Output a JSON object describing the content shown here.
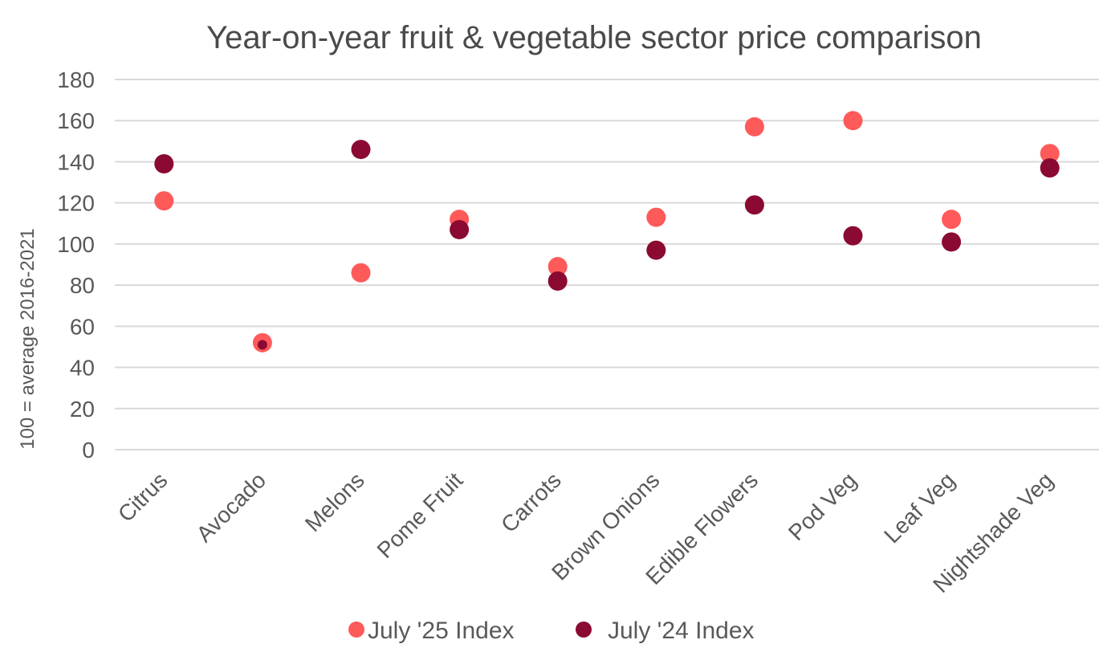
{
  "chart_data": {
    "type": "scatter",
    "title": "Year-on-year fruit & vegetable sector price comparison",
    "xlabel": "",
    "ylabel": "100 = average 2016-2021",
    "ylim": [
      0,
      180
    ],
    "yticks": [
      0,
      20,
      40,
      60,
      80,
      100,
      120,
      140,
      160,
      180
    ],
    "grid": true,
    "legend_position": "bottom",
    "categories": [
      "Citrus",
      "Avocado",
      "Melons",
      "Pome Fruit",
      "Carrots",
      "Brown Onions",
      "Edible Flowers",
      "Pod Veg",
      "Leaf Veg",
      "Nightshade Veg"
    ],
    "series": [
      {
        "name": "July '25 Index",
        "color": "#ff5a5a",
        "values": [
          121,
          52,
          86,
          112,
          89,
          113,
          157,
          160,
          112,
          144
        ]
      },
      {
        "name": "July '24 Index",
        "color": "#8b0a32",
        "values": [
          139,
          51,
          146,
          107,
          82,
          97,
          119,
          104,
          101,
          137
        ]
      }
    ]
  }
}
